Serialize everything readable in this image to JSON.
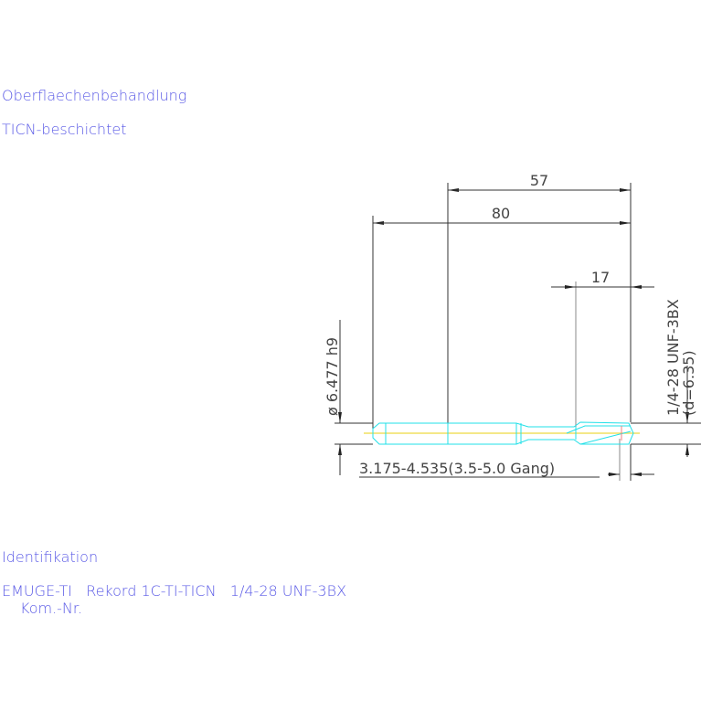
{
  "surface": {
    "heading": "Oberflaechenbehandlung",
    "value": "TICN-beschichtet"
  },
  "identification": {
    "heading": "Identifikation",
    "line1": "EMUGE-TI   Rekord 1C-TI-TICN   1/4-28 UNF-3BX",
    "line2": "Kom.-Nr."
  },
  "dimensions": {
    "d57": "57",
    "d80": "80",
    "d17": "17",
    "shank_diameter": "ø 6.477 h9",
    "thread": "1/4-28 UNF-3BX",
    "thread_d": "(d=6.35)",
    "core_drill": "3.175-4.535(3.5-5.0 Gang)"
  },
  "colors": {
    "label": "#5a5ae6",
    "tool_outline": "#22e0e8",
    "centerline": "#f0e060"
  }
}
